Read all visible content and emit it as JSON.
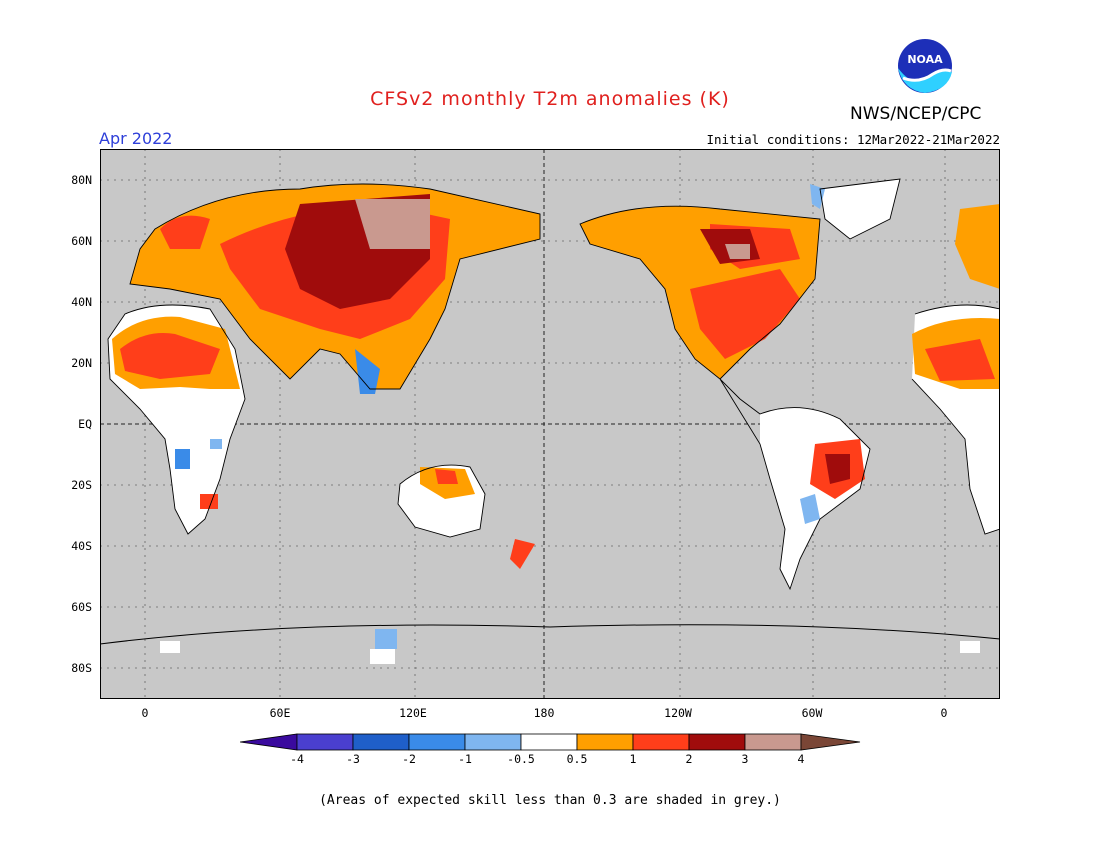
{
  "header": {
    "title": "CFSv2 monthly T2m anomalies (K)",
    "agency": "NWS/NCEP/CPC",
    "logo_text": "NOAA",
    "month": "Apr 2022",
    "initial_conditions": "Initial conditions: 12Mar2022-21Mar2022"
  },
  "map": {
    "projection": "equirectangular, centered on 180",
    "lon_range": [
      -20,
      380
    ],
    "lat_range": [
      -90,
      90
    ],
    "lat_labels": [
      "80N",
      "60N",
      "40N",
      "20N",
      "EQ",
      "20S",
      "40S",
      "60S",
      "80S"
    ],
    "lon_labels": [
      "0",
      "60E",
      "120E",
      "180",
      "120W",
      "60W",
      "0"
    ],
    "background_color": "#c8c8c8"
  },
  "colorbar": {
    "tick_labels": [
      "-4",
      "-3",
      "-2",
      "-1",
      "-0.5",
      "0.5",
      "1",
      "2",
      "3",
      "4"
    ],
    "colors": [
      "#3a0a9e",
      "#4a3fcf",
      "#1f5fc9",
      "#3a8be8",
      "#7fb6f0",
      "#ffffff",
      "#ff9f00",
      "#ff3e1a",
      "#a00c0c",
      "#c9998f",
      "#7a4636"
    ]
  },
  "note": "(Areas of expected skill less than 0.3 are shaded in grey.)"
}
